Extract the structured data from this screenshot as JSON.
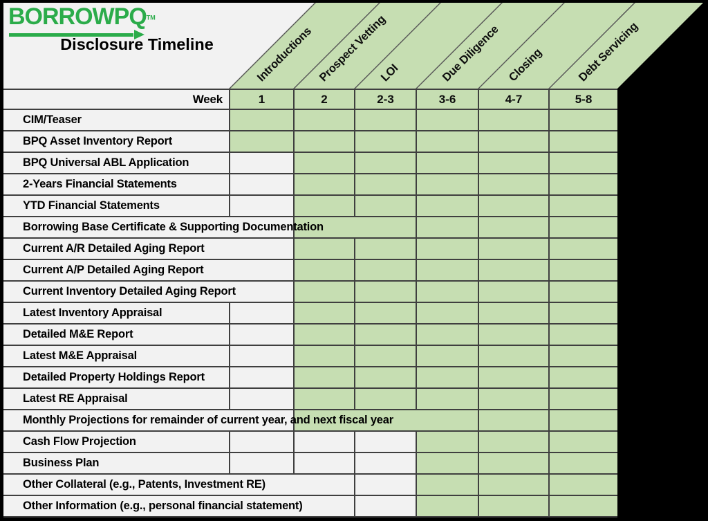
{
  "logo": {
    "text": "BORROWPQ",
    "trademark": "TM"
  },
  "title": "Disclosure Timeline",
  "week_row_label": "Week",
  "colors": {
    "logo_green": "#2bac4a",
    "cell_green": "#c6deb2",
    "label_gray": "#f2f2f2",
    "grid_line": "#3f3f3f",
    "frame": "#000000"
  },
  "chart_data": {
    "type": "table",
    "title": "Disclosure Timeline",
    "phases": [
      {
        "name": "Introductions",
        "week": "1"
      },
      {
        "name": "Prospect Vetting",
        "week": "2"
      },
      {
        "name": "LOI",
        "week": "2-3"
      },
      {
        "name": "Due Diligence",
        "week": "3-6"
      },
      {
        "name": "Closing",
        "week": "4-7"
      },
      {
        "name": "Debt Servicing",
        "week": "5-8"
      }
    ],
    "documents": [
      {
        "name": "CIM/Teaser",
        "from_phase": 1,
        "to_phase": 6,
        "label_span_cols": 0,
        "green_merge_to": 1
      },
      {
        "name": "BPQ Asset Inventory Report",
        "from_phase": 1,
        "to_phase": 6,
        "label_span_cols": 0,
        "green_merge_to": 1
      },
      {
        "name": "BPQ Universal ABL Application",
        "from_phase": 2,
        "to_phase": 6,
        "label_span_cols": 0,
        "green_merge_to": 2
      },
      {
        "name": "2-Years Financial Statements",
        "from_phase": 2,
        "to_phase": 6,
        "label_span_cols": 0,
        "green_merge_to": 2
      },
      {
        "name": "YTD Financial Statements",
        "from_phase": 2,
        "to_phase": 6,
        "label_span_cols": 0,
        "green_merge_to": 2
      },
      {
        "name": "Borrowing Base Certificate & Supporting Documentation",
        "from_phase": 2,
        "to_phase": 6,
        "label_span_cols": 1,
        "green_merge_to": 3
      },
      {
        "name": "Current A/R Detailed Aging Report",
        "from_phase": 2,
        "to_phase": 6,
        "label_span_cols": 1,
        "green_merge_to": 2
      },
      {
        "name": "Current A/P Detailed Aging Report",
        "from_phase": 2,
        "to_phase": 6,
        "label_span_cols": 1,
        "green_merge_to": 2
      },
      {
        "name": "Current Inventory Detailed Aging Report",
        "from_phase": 2,
        "to_phase": 6,
        "label_span_cols": 1,
        "green_merge_to": 2
      },
      {
        "name": "Latest Inventory Appraisal",
        "from_phase": 2,
        "to_phase": 6,
        "label_span_cols": 0,
        "green_merge_to": 2
      },
      {
        "name": "Detailed M&E Report",
        "from_phase": 2,
        "to_phase": 6,
        "label_span_cols": 0,
        "green_merge_to": 2
      },
      {
        "name": "Latest M&E Appraisal",
        "from_phase": 2,
        "to_phase": 6,
        "label_span_cols": 0,
        "green_merge_to": 2
      },
      {
        "name": "Detailed Property Holdings Report",
        "from_phase": 2,
        "to_phase": 6,
        "label_span_cols": 0,
        "green_merge_to": 2
      },
      {
        "name": "Latest RE Appraisal",
        "from_phase": 2,
        "to_phase": 6,
        "label_span_cols": 0,
        "green_merge_to": 2
      },
      {
        "name": "Monthly Projections for remainder of current year, and next fiscal year",
        "from_phase": 2,
        "to_phase": 6,
        "label_span_cols": 1,
        "green_merge_to": 4
      },
      {
        "name": "Cash Flow Projection",
        "from_phase": 4,
        "to_phase": 6,
        "label_span_cols": 0,
        "green_merge_to": 4
      },
      {
        "name": "Business Plan",
        "from_phase": 4,
        "to_phase": 6,
        "label_span_cols": 0,
        "green_merge_to": 4
      },
      {
        "name": "Other Collateral (e.g., Patents, Investment RE)",
        "from_phase": 4,
        "to_phase": 6,
        "label_span_cols": 2,
        "green_merge_to": 4
      },
      {
        "name": "Other Information (e.g., personal financial statement)",
        "from_phase": 4,
        "to_phase": 6,
        "label_span_cols": 2,
        "green_merge_to": 4
      }
    ]
  }
}
